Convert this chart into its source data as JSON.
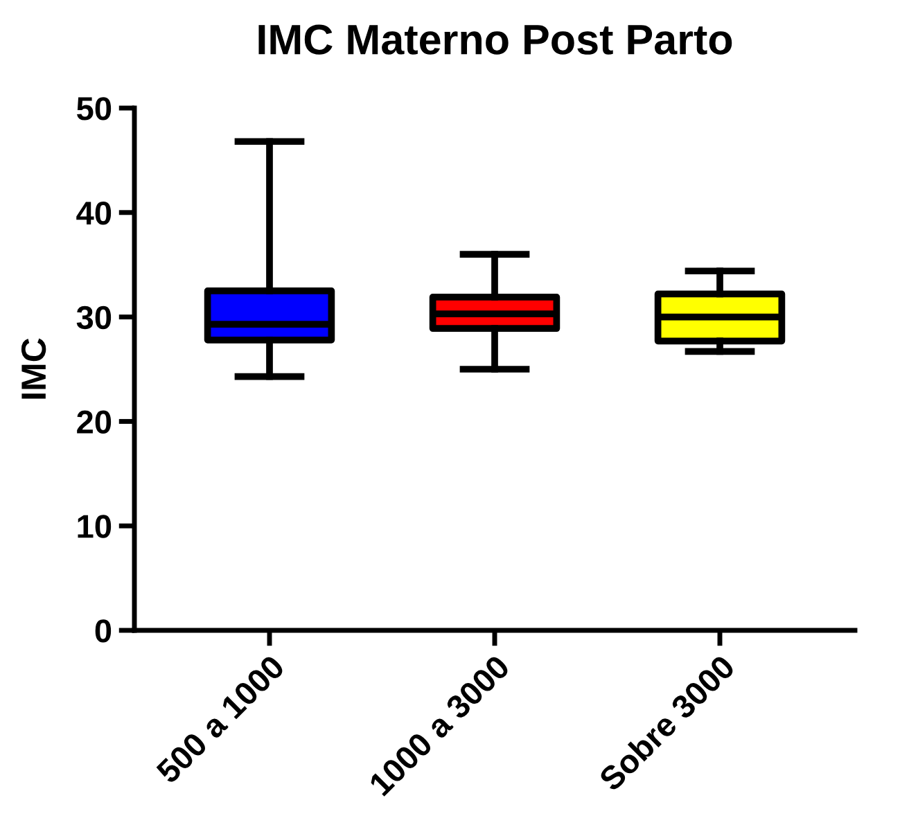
{
  "chart_data": {
    "type": "box",
    "title": "IMC Materno Post Parto",
    "ylabel": "IMC",
    "categories": [
      "500 a 1000",
      "1000 a 3000",
      "Sobre 3000"
    ],
    "colors": [
      "#0000ff",
      "#ff0000",
      "#ffff00"
    ],
    "boxes": [
      {
        "low": 24.3,
        "q1": 27.8,
        "median": 29.3,
        "q3": 32.5,
        "high": 46.8
      },
      {
        "low": 25.0,
        "q1": 28.9,
        "median": 30.3,
        "q3": 31.9,
        "high": 36.0
      },
      {
        "low": 26.7,
        "q1": 27.7,
        "median": 30.0,
        "q3": 32.2,
        "high": 34.4
      }
    ],
    "ylim": [
      0,
      50
    ],
    "yticks": [
      0,
      10,
      20,
      30,
      40,
      50
    ],
    "grid": false
  }
}
